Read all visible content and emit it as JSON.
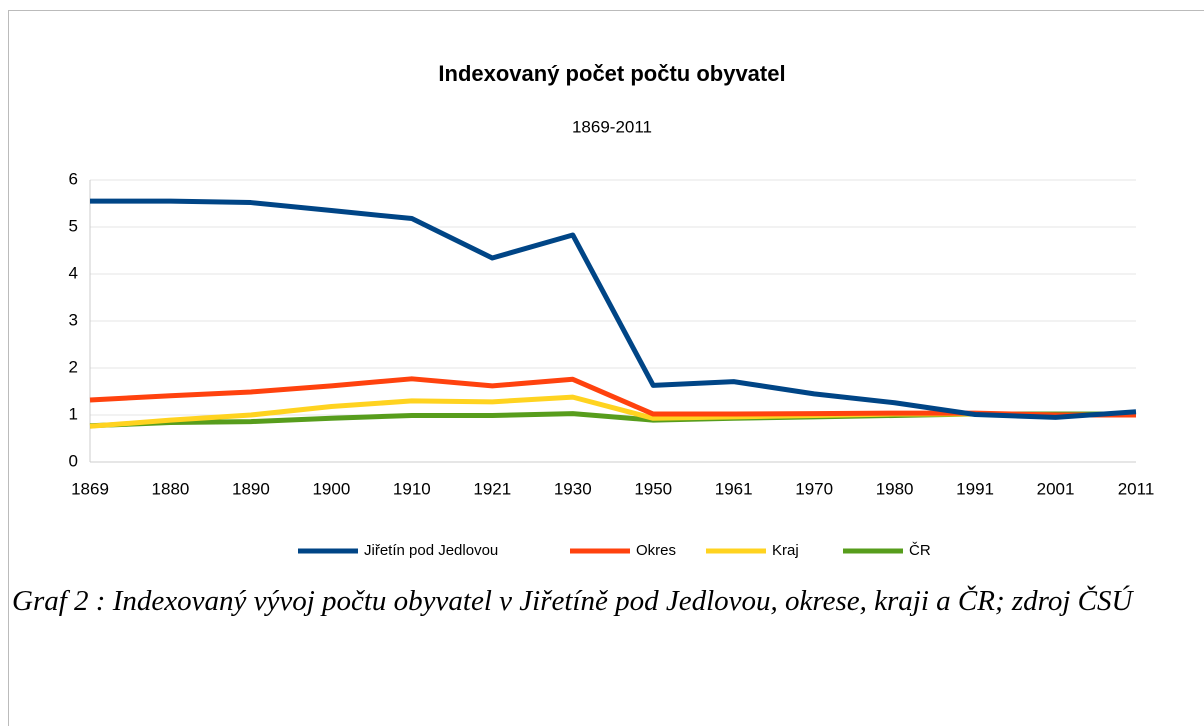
{
  "chart_data": {
    "type": "line",
    "title": "Indexovaný počet počtu obyvatel",
    "subtitle": "1869-2011",
    "categories": [
      "1869",
      "1880",
      "1890",
      "1900",
      "1910",
      "1921",
      "1930",
      "1950",
      "1961",
      "1970",
      "1980",
      "1991",
      "2001",
      "2011"
    ],
    "series": [
      {
        "name": "Jiřetín pod Jedlovou",
        "color": "#004586",
        "values": [
          5.55,
          5.55,
          5.52,
          5.35,
          5.18,
          4.34,
          4.83,
          1.63,
          1.71,
          1.45,
          1.26,
          1.01,
          0.95,
          1.07
        ]
      },
      {
        "name": "Okres",
        "color": "#ff420e",
        "values": [
          1.32,
          1.41,
          1.49,
          1.62,
          1.77,
          1.62,
          1.76,
          1.02,
          1.02,
          1.03,
          1.04,
          1.04,
          1.0,
          1.0
        ]
      },
      {
        "name": "Kraj",
        "color": "#ffd320",
        "values": [
          0.76,
          0.89,
          1.0,
          1.18,
          1.3,
          1.28,
          1.38,
          0.93,
          0.96,
          0.99,
          1.02,
          1.02,
          1.0,
          1.0
        ]
      },
      {
        "name": "ČR",
        "color": "#579d1c",
        "values": [
          0.77,
          0.84,
          0.86,
          0.93,
          0.99,
          0.99,
          1.03,
          0.89,
          0.93,
          0.96,
          0.99,
          1.02,
          1.02,
          1.02
        ]
      }
    ],
    "ylim": [
      0,
      6
    ],
    "yticks": [
      0,
      1,
      2,
      3,
      4,
      5,
      6
    ],
    "grid": true,
    "legend": "bottom"
  },
  "caption": "Graf 2 : Indexovaný vývoj počtu obyvatel v Jiřetíně pod Jedlovou, okrese, kraji a ČR; zdroj ČSÚ"
}
